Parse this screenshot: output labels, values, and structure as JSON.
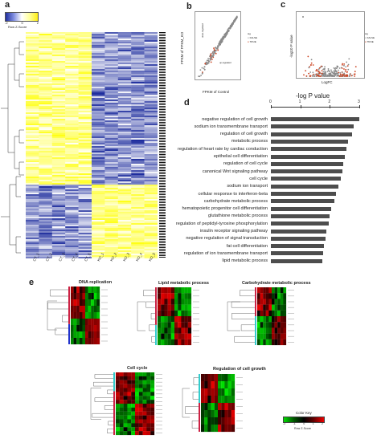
{
  "figure": {
    "panel_a": {
      "letter": "a",
      "color_key": {
        "ticks": [
          "-2",
          "0",
          "2"
        ],
        "label": "Row Z-Score"
      },
      "columns": [
        "CT_1",
        "CT_2",
        "CT_3",
        "CT_4",
        "CT_5",
        "KO_1",
        "KO_2",
        "KO_3",
        "KO_4",
        "KO_5"
      ]
    },
    "panel_b": {
      "letter": "b",
      "xlabel": "FPKM of Control",
      "ylabel": "FPKM of FPKM_KO",
      "legend_title": "sig",
      "legend_items": [
        "FALSE",
        "TRUE"
      ],
      "annotations": [
        "down-regulated",
        "up-regulated"
      ]
    },
    "panel_c": {
      "letter": "c",
      "xlabel": "LogFC",
      "ylabel": "-log10 P value",
      "legend_title": "sig",
      "legend_items": [
        "FALSE",
        "TRUE"
      ]
    },
    "panel_d": {
      "letter": "d"
    },
    "panel_e": {
      "letter": "e",
      "heatmaps": [
        {
          "title": "DNA replication"
        },
        {
          "title": "Lipid metabolic process"
        },
        {
          "title": "Carbohydrate metabolic process"
        },
        {
          "title": "Cell cycle"
        },
        {
          "title": "Regulation of cell growth"
        }
      ],
      "color_key": {
        "title": "Color Key",
        "ticks": [
          "-2",
          "-1",
          "0",
          "1",
          "2"
        ],
        "label": "Row Z-Score"
      }
    },
    "colors": {
      "bar": "#4d4d4d",
      "up": "#1a1a66",
      "down": "#ffff33",
      "sig": "#cc4422"
    }
  },
  "chart_data": [
    {
      "type": "bar",
      "orientation": "horizontal",
      "title": "-log P value",
      "xlim": [
        0,
        3
      ],
      "xticks": [
        "0",
        "1",
        "2",
        "3"
      ],
      "categories": [
        "negative regulation of cell growth",
        "sodium ion transmembrane transport",
        "regulation of cell growth",
        "metabolic process",
        "regulation of heart rate by cardiac conduction",
        "epithelial cell differentiation",
        "regulation of cell cycle",
        "canonical Wnt signaling pathway",
        "cell cycle",
        "sodium ion transport",
        "cellular response to interferon-beta",
        "carbohydrate metabolic process",
        "hematopoietic progenitor cell differentiation",
        "glutathione metabolic process",
        "regulation of peptidyl-tyrosine phosphorylation",
        "insulin receptor signaling pathway",
        "negative regulation of signal transduction",
        "fat cell differentiation",
        "regulation of ion transmembrane transport",
        "lipid metabolic process"
      ],
      "values": [
        3.0,
        2.82,
        2.75,
        2.62,
        2.55,
        2.5,
        2.45,
        2.42,
        2.38,
        2.28,
        2.2,
        2.15,
        2.05,
        1.98,
        1.95,
        1.88,
        1.85,
        1.8,
        1.78,
        1.75
      ]
    }
  ]
}
